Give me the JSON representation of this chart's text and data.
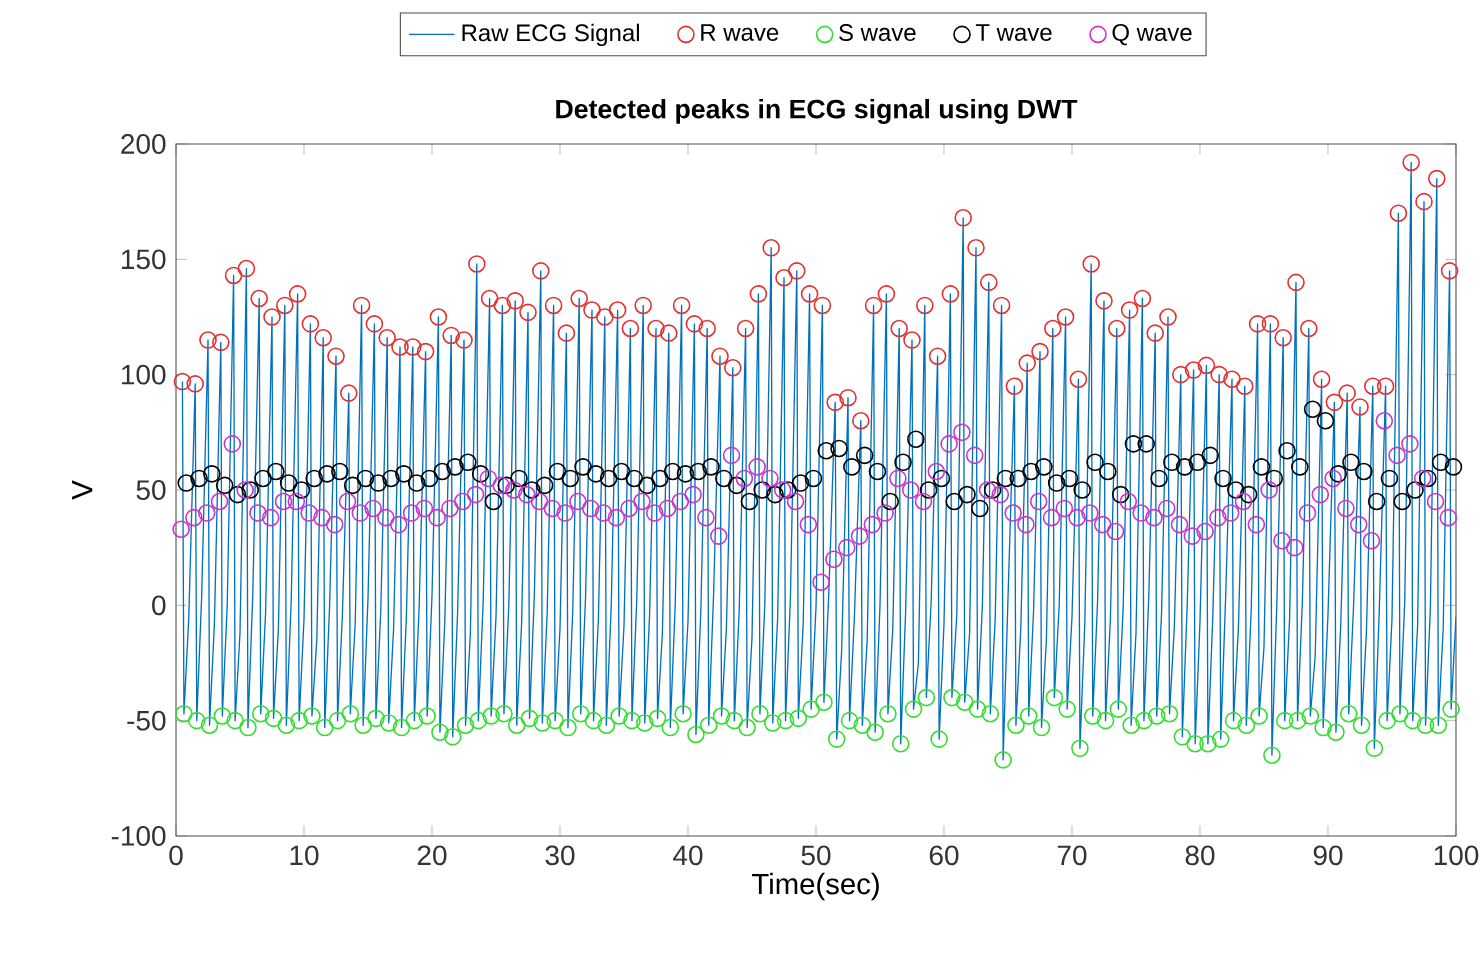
{
  "chart_data": {
    "type": "line",
    "title": "Detected peaks in ECG signal using DWT",
    "xlabel": "Time(sec)",
    "ylabel": "V",
    "xlim": [
      0,
      100
    ],
    "xticks": [
      0,
      10,
      20,
      30,
      40,
      50,
      60,
      70,
      80,
      90,
      100
    ],
    "ylim": [
      -100,
      200
    ],
    "yticks": [
      -100,
      -50,
      0,
      50,
      100,
      150,
      200
    ],
    "legend": "top",
    "grid": false,
    "series": [
      {
        "name": "Raw ECG Signal",
        "marker": "none",
        "color": "#0072bd",
        "x": [
          0.5,
          0.62,
          1,
          1.5,
          1.62,
          2,
          2.5,
          2.62,
          3,
          3.5,
          3.62,
          4,
          4.5,
          4.62,
          5,
          5.5,
          5.62,
          6,
          6.5,
          6.62,
          7,
          7.5,
          7.62,
          8,
          8.5,
          8.62,
          9,
          9.5,
          9.62,
          10,
          10.5,
          10.62,
          11,
          11.5,
          11.62,
          12,
          12.5,
          12.62,
          13,
          13.5,
          13.62,
          14,
          14.5,
          14.62,
          15,
          15.5,
          15.62,
          16,
          16.5,
          16.62,
          17,
          17.5,
          17.62,
          18,
          18.5,
          18.62,
          19,
          19.5,
          19.62,
          20,
          20.5,
          20.62,
          21,
          21.5,
          21.62,
          22,
          22.5,
          22.62,
          23,
          23.5,
          23.62,
          24,
          24.5,
          24.62,
          25,
          25.5,
          25.62,
          26,
          26.5,
          26.62,
          27,
          27.5,
          27.62,
          28,
          28.5,
          28.62,
          29,
          29.5,
          29.62,
          30,
          30.5,
          30.62,
          31,
          31.5,
          31.62,
          32,
          32.5,
          32.62,
          33,
          33.5,
          33.62,
          34,
          34.5,
          34.62,
          35,
          35.5,
          35.62,
          36,
          36.5,
          36.62,
          37,
          37.5,
          37.62,
          38,
          38.5,
          38.62,
          39,
          39.5,
          39.62,
          40,
          40.5,
          40.62,
          41,
          41.5,
          41.62,
          42,
          42.5,
          42.62,
          43,
          43.5,
          43.62,
          44,
          44.5,
          44.62,
          45,
          45.5,
          45.62,
          46,
          46.5,
          46.62,
          47,
          47.5,
          47.62,
          48,
          48.5,
          48.62,
          49,
          49.5,
          49.62,
          50,
          50.5,
          50.62,
          51,
          51.5,
          51.62,
          52,
          52.5,
          52.62,
          53,
          53.5,
          53.62,
          54,
          54.5,
          54.62,
          55,
          55.5,
          55.62,
          56,
          56.5,
          56.62,
          57,
          57.5,
          57.62,
          58,
          58.5,
          58.62,
          59,
          59.5,
          59.62,
          60,
          60.5,
          60.62,
          61,
          61.5,
          61.62,
          62,
          62.5,
          62.62,
          63,
          63.5,
          63.62,
          64,
          64.5,
          64.62,
          65,
          65.5,
          65.62,
          66,
          66.5,
          66.62,
          67,
          67.5,
          67.62,
          68,
          68.5,
          68.62,
          69,
          69.5,
          69.62,
          70,
          70.5,
          70.62,
          71,
          71.5,
          71.62,
          72,
          72.5,
          72.62,
          73,
          73.5,
          73.62,
          74,
          74.5,
          74.62,
          75,
          75.5,
          75.62,
          76,
          76.5,
          76.62,
          77,
          77.5,
          77.62,
          78,
          78.5,
          78.62,
          79,
          79.5,
          79.62,
          80,
          80.5,
          80.62,
          81,
          81.5,
          81.62,
          82,
          82.5,
          82.62,
          83,
          83.5,
          83.62,
          84,
          84.5,
          84.62,
          85,
          85.5,
          85.62,
          86,
          86.5,
          86.62,
          87,
          87.5,
          87.62,
          88,
          88.5,
          88.62,
          89,
          89.5,
          89.62,
          90,
          90.5,
          90.62,
          91,
          91.5,
          91.62,
          92,
          92.5,
          92.62,
          93,
          93.5,
          93.62,
          94,
          94.5,
          94.62,
          95,
          95.5,
          95.62,
          96,
          96.5,
          96.62,
          97,
          97.5,
          97.62,
          98,
          98.5,
          98.62,
          99,
          99.5,
          99.62,
          100
        ],
        "values": [
          97,
          -47,
          -5,
          96,
          -50,
          3,
          115,
          -52,
          -8,
          114,
          -48,
          0,
          143,
          -50,
          -12,
          146,
          -53,
          5,
          133,
          -47,
          -3,
          125,
          -49,
          -10,
          130,
          -52,
          2,
          135,
          -50,
          -6,
          122,
          -48,
          -15,
          116,
          -53,
          0,
          108,
          -50,
          -4,
          92,
          -47,
          -8,
          130,
          -52,
          3,
          122,
          -49,
          -2,
          116,
          -51,
          -10,
          112,
          -53,
          -5,
          112,
          -50,
          0,
          110,
          -48,
          4,
          125,
          -55,
          -7,
          117,
          -57,
          -3,
          115,
          -52,
          -12,
          148,
          -50,
          2,
          133,
          -48,
          -5,
          130,
          -47,
          0,
          132,
          -52,
          -8,
          127,
          -49,
          5,
          145,
          -51,
          -3,
          130,
          -50,
          -10,
          118,
          -53,
          -2,
          133,
          -47,
          4,
          128,
          -50,
          -6,
          125,
          -52,
          -1,
          128,
          -48,
          -9,
          120,
          -50,
          3,
          130,
          -51,
          -4,
          120,
          -49,
          -12,
          118,
          -53,
          0,
          130,
          -47,
          -7,
          122,
          -56,
          -3,
          120,
          -52,
          5,
          108,
          -48,
          -10,
          103,
          -50,
          -2,
          120,
          -53,
          -14,
          135,
          -47,
          0,
          155,
          -51,
          -6,
          142,
          -50,
          3,
          145,
          -49,
          -8,
          135,
          -45,
          -1,
          130,
          -42,
          5,
          88,
          -58,
          -20,
          90,
          -50,
          -5,
          80,
          -52,
          -15,
          130,
          -55,
          0,
          135,
          -47,
          -10,
          120,
          -60,
          -3,
          115,
          -45,
          -25,
          130,
          -40,
          2,
          108,
          -58,
          -8,
          135,
          -40,
          -4,
          168,
          -42,
          -12,
          155,
          -45,
          0,
          140,
          -47,
          -6,
          130,
          -67,
          3,
          95,
          -52,
          -10,
          105,
          -48,
          -2,
          110,
          -53,
          -15,
          120,
          -40,
          0,
          125,
          -45,
          -5,
          98,
          -62,
          -8,
          148,
          -48,
          2,
          132,
          -50,
          -6,
          120,
          -45,
          -1,
          128,
          -52,
          -12,
          133,
          -50,
          4,
          118,
          -48,
          -3,
          125,
          -47,
          -9,
          100,
          -57,
          0,
          102,
          -60,
          -7,
          104,
          -60,
          -5,
          100,
          -58,
          3,
          98,
          -50,
          -10,
          95,
          -52,
          -2,
          122,
          -48,
          -18,
          122,
          -65,
          0,
          116,
          -50,
          -6,
          140,
          -50,
          2,
          120,
          -48,
          -22,
          98,
          -53,
          -4,
          88,
          -55,
          -8,
          92,
          -47,
          0,
          86,
          -52,
          -12,
          95,
          -62,
          -3,
          95,
          -50,
          -6,
          170,
          -47,
          2,
          192,
          -50,
          -9,
          175,
          -52,
          -1,
          185,
          -52,
          -10,
          145,
          -45,
          -5
        ]
      },
      {
        "name": "R wave",
        "type": "scatter",
        "marker": "circle",
        "color": "#e03131",
        "x": [
          0.5,
          1.5,
          2.5,
          3.5,
          4.5,
          5.5,
          6.5,
          7.5,
          8.5,
          9.5,
          10.5,
          11.5,
          12.5,
          13.5,
          14.5,
          15.5,
          16.5,
          17.5,
          18.5,
          19.5,
          20.5,
          21.5,
          22.5,
          23.5,
          24.5,
          25.5,
          26.5,
          27.5,
          28.5,
          29.5,
          30.5,
          31.5,
          32.5,
          33.5,
          34.5,
          35.5,
          36.5,
          37.5,
          38.5,
          39.5,
          40.5,
          41.5,
          42.5,
          43.5,
          44.5,
          45.5,
          46.5,
          47.5,
          48.5,
          49.5,
          50.5,
          51.5,
          52.5,
          53.5,
          54.5,
          55.5,
          56.5,
          57.5,
          58.5,
          59.5,
          60.5,
          61.5,
          62.5,
          63.5,
          64.5,
          65.5,
          66.5,
          67.5,
          68.5,
          69.5,
          70.5,
          71.5,
          72.5,
          73.5,
          74.5,
          75.5,
          76.5,
          77.5,
          78.5,
          79.5,
          80.5,
          81.5,
          82.5,
          83.5,
          84.5,
          85.5,
          86.5,
          87.5,
          88.5,
          89.5,
          90.5,
          91.5,
          92.5,
          93.5,
          94.5,
          95.5,
          96.5,
          97.5,
          98.5,
          99.5
        ],
        "values": [
          97,
          96,
          115,
          114,
          143,
          146,
          133,
          125,
          130,
          135,
          122,
          116,
          108,
          92,
          130,
          122,
          116,
          112,
          112,
          110,
          125,
          117,
          115,
          148,
          133,
          130,
          132,
          127,
          145,
          130,
          118,
          133,
          128,
          125,
          128,
          120,
          130,
          120,
          118,
          130,
          122,
          120,
          108,
          103,
          120,
          135,
          155,
          142,
          145,
          135,
          130,
          88,
          90,
          80,
          130,
          135,
          120,
          115,
          130,
          108,
          135,
          168,
          155,
          140,
          130,
          95,
          105,
          110,
          120,
          125,
          98,
          148,
          132,
          120,
          128,
          133,
          118,
          125,
          100,
          102,
          104,
          100,
          98,
          95,
          122,
          122,
          116,
          140,
          120,
          98,
          88,
          92,
          86,
          95,
          95,
          170,
          192,
          175,
          185,
          145
        ]
      },
      {
        "name": "S wave",
        "type": "scatter",
        "marker": "circle",
        "color": "#33dd33",
        "x": [
          0.62,
          1.62,
          2.62,
          3.62,
          4.62,
          5.62,
          6.62,
          7.62,
          8.62,
          9.62,
          10.62,
          11.62,
          12.62,
          13.62,
          14.62,
          15.62,
          16.62,
          17.62,
          18.62,
          19.62,
          20.62,
          21.62,
          22.62,
          23.62,
          24.62,
          25.62,
          26.62,
          27.62,
          28.62,
          29.62,
          30.62,
          31.62,
          32.62,
          33.62,
          34.62,
          35.62,
          36.62,
          37.62,
          38.62,
          39.62,
          40.62,
          41.62,
          42.62,
          43.62,
          44.62,
          45.62,
          46.62,
          47.62,
          48.62,
          49.62,
          50.62,
          51.62,
          52.62,
          53.62,
          54.62,
          55.62,
          56.62,
          57.62,
          58.62,
          59.62,
          60.62,
          61.62,
          62.62,
          63.62,
          64.62,
          65.62,
          66.62,
          67.62,
          68.62,
          69.62,
          70.62,
          71.62,
          72.62,
          73.62,
          74.62,
          75.62,
          76.62,
          77.62,
          78.62,
          79.62,
          80.62,
          81.62,
          82.62,
          83.62,
          84.62,
          85.62,
          86.62,
          87.62,
          88.62,
          89.62,
          90.62,
          91.62,
          92.62,
          93.62,
          94.62,
          95.62,
          96.62,
          97.62,
          98.62,
          99.62
        ],
        "values": [
          -47,
          -50,
          -52,
          -48,
          -50,
          -53,
          -47,
          -49,
          -52,
          -50,
          -48,
          -53,
          -50,
          -47,
          -52,
          -49,
          -51,
          -53,
          -50,
          -48,
          -55,
          -57,
          -52,
          -50,
          -48,
          -47,
          -52,
          -49,
          -51,
          -50,
          -53,
          -47,
          -50,
          -52,
          -48,
          -50,
          -51,
          -49,
          -53,
          -47,
          -56,
          -52,
          -48,
          -50,
          -53,
          -47,
          -51,
          -50,
          -49,
          -45,
          -42,
          -58,
          -50,
          -52,
          -55,
          -47,
          -60,
          -45,
          -40,
          -58,
          -40,
          -42,
          -45,
          -47,
          -67,
          -52,
          -48,
          -53,
          -40,
          -45,
          -62,
          -48,
          -50,
          -45,
          -52,
          -50,
          -48,
          -47,
          -57,
          -60,
          -60,
          -58,
          -50,
          -52,
          -48,
          -65,
          -50,
          -50,
          -48,
          -53,
          -55,
          -47,
          -52,
          -62,
          -50,
          -47,
          -50,
          -52,
          -52,
          -45
        ]
      },
      {
        "name": "T wave",
        "type": "scatter",
        "marker": "circle",
        "color": "#000000",
        "x": [
          0.8,
          1.8,
          2.8,
          3.8,
          4.8,
          5.8,
          6.8,
          7.8,
          8.8,
          9.8,
          10.8,
          11.8,
          12.8,
          13.8,
          14.8,
          15.8,
          16.8,
          17.8,
          18.8,
          19.8,
          20.8,
          21.8,
          22.8,
          23.8,
          24.8,
          25.8,
          26.8,
          27.8,
          28.8,
          29.8,
          30.8,
          31.8,
          32.8,
          33.8,
          34.8,
          35.8,
          36.8,
          37.8,
          38.8,
          39.8,
          40.8,
          41.8,
          42.8,
          43.8,
          44.8,
          45.8,
          46.8,
          47.8,
          48.8,
          49.8,
          50.8,
          51.8,
          52.8,
          53.8,
          54.8,
          55.8,
          56.8,
          57.8,
          58.8,
          59.8,
          60.8,
          61.8,
          62.8,
          63.8,
          64.8,
          65.8,
          66.8,
          67.8,
          68.8,
          69.8,
          70.8,
          71.8,
          72.8,
          73.8,
          74.8,
          75.8,
          76.8,
          77.8,
          78.8,
          79.8,
          80.8,
          81.8,
          82.8,
          83.8,
          84.8,
          85.8,
          86.8,
          87.8,
          88.8,
          89.8,
          90.8,
          91.8,
          92.8,
          93.8,
          94.8,
          95.8,
          96.8,
          97.8,
          98.8,
          99.8
        ],
        "values": [
          53,
          55,
          57,
          52,
          48,
          50,
          55,
          58,
          53,
          50,
          55,
          57,
          58,
          52,
          55,
          53,
          55,
          57,
          53,
          55,
          58,
          60,
          62,
          57,
          45,
          52,
          55,
          50,
          52,
          58,
          55,
          60,
          57,
          55,
          58,
          55,
          52,
          55,
          58,
          57,
          58,
          60,
          55,
          52,
          45,
          50,
          48,
          50,
          53,
          55,
          67,
          68,
          60,
          65,
          58,
          45,
          62,
          72,
          50,
          55,
          45,
          48,
          42,
          50,
          55,
          55,
          58,
          60,
          53,
          55,
          50,
          62,
          58,
          48,
          70,
          70,
          55,
          62,
          60,
          62,
          65,
          55,
          50,
          48,
          60,
          55,
          67,
          60,
          85,
          80,
          57,
          62,
          58,
          45,
          55,
          45,
          50,
          55,
          62,
          60
        ]
      },
      {
        "name": "Q wave",
        "type": "scatter",
        "marker": "circle",
        "color": "#cc33cc",
        "x": [
          0.4,
          1.4,
          2.4,
          3.4,
          4.4,
          5.4,
          6.4,
          7.4,
          8.4,
          9.4,
          10.4,
          11.4,
          12.4,
          13.4,
          14.4,
          15.4,
          16.4,
          17.4,
          18.4,
          19.4,
          20.4,
          21.4,
          22.4,
          23.4,
          24.4,
          25.4,
          26.4,
          27.4,
          28.4,
          29.4,
          30.4,
          31.4,
          32.4,
          33.4,
          34.4,
          35.4,
          36.4,
          37.4,
          38.4,
          39.4,
          40.4,
          41.4,
          42.4,
          43.4,
          44.4,
          45.4,
          46.4,
          47.4,
          48.4,
          49.4,
          50.4,
          51.4,
          52.4,
          53.4,
          54.4,
          55.4,
          56.4,
          57.4,
          58.4,
          59.4,
          60.4,
          61.4,
          62.4,
          63.4,
          64.4,
          65.4,
          66.4,
          67.4,
          68.4,
          69.4,
          70.4,
          71.4,
          72.4,
          73.4,
          74.4,
          75.4,
          76.4,
          77.4,
          78.4,
          79.4,
          80.4,
          81.4,
          82.4,
          83.4,
          84.4,
          85.4,
          86.4,
          87.4,
          88.4,
          89.4,
          90.4,
          91.4,
          92.4,
          93.4,
          94.4,
          95.4,
          96.4,
          97.4,
          98.4,
          99.4
        ],
        "values": [
          33,
          38,
          40,
          45,
          70,
          50,
          40,
          38,
          45,
          45,
          40,
          38,
          35,
          45,
          40,
          42,
          38,
          35,
          40,
          42,
          38,
          42,
          45,
          48,
          55,
          52,
          50,
          48,
          45,
          42,
          40,
          45,
          42,
          40,
          38,
          42,
          45,
          40,
          42,
          45,
          48,
          38,
          30,
          65,
          55,
          60,
          55,
          50,
          45,
          35,
          10,
          20,
          25,
          30,
          35,
          40,
          55,
          50,
          45,
          58,
          70,
          75,
          65,
          50,
          48,
          40,
          35,
          45,
          38,
          42,
          38,
          40,
          35,
          32,
          45,
          40,
          38,
          42,
          35,
          30,
          32,
          38,
          40,
          45,
          35,
          50,
          28,
          25,
          40,
          48,
          55,
          42,
          35,
          28,
          80,
          65,
          70,
          55,
          45,
          38
        ]
      }
    ]
  }
}
